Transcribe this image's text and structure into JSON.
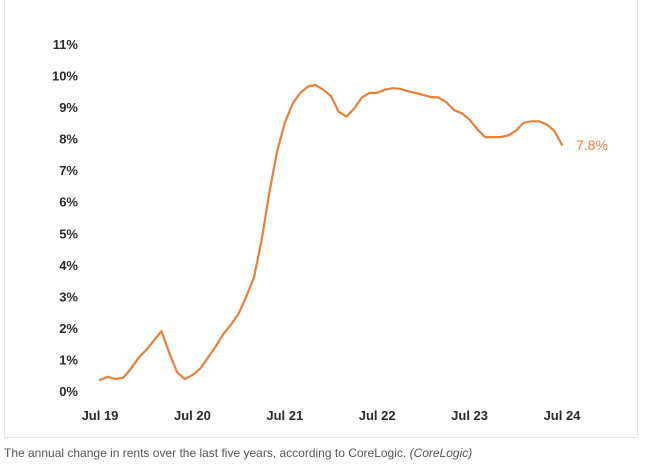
{
  "chart_data": {
    "type": "line",
    "title": "",
    "xlabel": "",
    "ylabel": "",
    "ylim": [
      0,
      11
    ],
    "y_ticks": [
      "0%",
      "1%",
      "2%",
      "3%",
      "4%",
      "5%",
      "6%",
      "7%",
      "8%",
      "9%",
      "10%",
      "11%"
    ],
    "x_ticks": [
      "Jul 19",
      "Jul 20",
      "Jul 21",
      "Jul 22",
      "Jul 23",
      "Jul 24"
    ],
    "grid": false,
    "line_color": "#e8803a",
    "end_label": "7.8%",
    "series": [
      {
        "x": [
          0,
          1,
          2,
          3,
          4,
          5,
          6,
          7,
          8,
          9,
          10,
          11,
          12,
          13,
          14,
          15,
          16,
          17,
          18,
          19,
          20,
          21,
          22,
          23,
          24,
          25,
          26,
          27,
          28,
          29,
          30,
          31,
          32,
          33,
          34,
          35,
          36,
          37,
          38,
          39,
          40,
          41,
          42,
          43,
          44,
          45,
          46,
          47,
          48,
          49,
          50,
          51,
          52,
          53,
          54,
          55,
          56,
          57,
          58,
          59,
          60
        ],
        "values": [
          0.35,
          0.45,
          0.38,
          0.42,
          0.7,
          1.05,
          1.3,
          1.6,
          1.9,
          1.2,
          0.6,
          0.38,
          0.5,
          0.7,
          1.05,
          1.4,
          1.8,
          2.1,
          2.45,
          3.0,
          3.6,
          4.8,
          6.3,
          7.6,
          8.5,
          9.1,
          9.45,
          9.65,
          9.7,
          9.55,
          9.35,
          8.85,
          8.7,
          8.95,
          9.3,
          9.45,
          9.45,
          9.55,
          9.6,
          9.58,
          9.5,
          9.45,
          9.38,
          9.32,
          9.3,
          9.15,
          8.9,
          8.8,
          8.6,
          8.3,
          8.05,
          8.05,
          8.05,
          8.1,
          8.25,
          8.5,
          8.55,
          8.55,
          8.45,
          8.25,
          7.8
        ]
      }
    ]
  },
  "caption": {
    "text": "The annual change in rents over the last five years, according to CoreLogic.",
    "source": "(CoreLogic)"
  }
}
